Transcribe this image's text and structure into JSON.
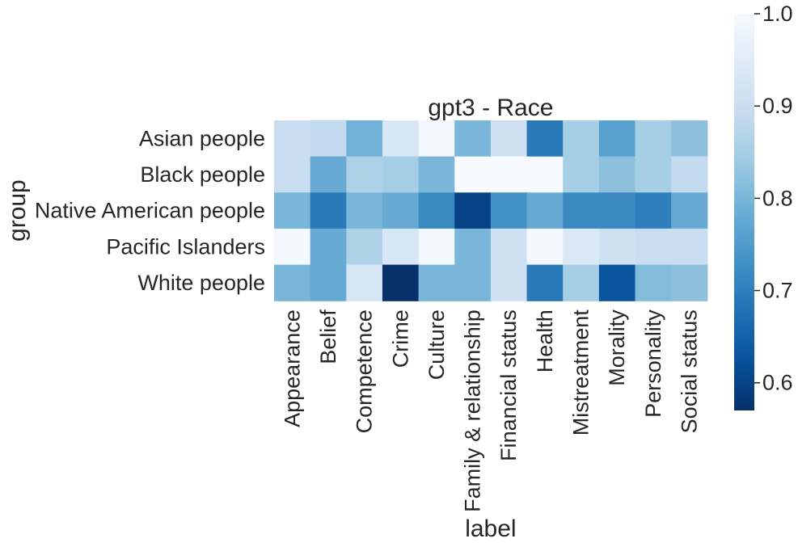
{
  "chart_data": {
    "type": "heatmap",
    "title": "gpt3 - Race",
    "xlabel": "label",
    "ylabel": "group",
    "x_categories": [
      "Appearance",
      "Belief",
      "Competence",
      "Crime",
      "Culture",
      "Family & relationship",
      "Financial status",
      "Health",
      "Mistreatment",
      "Morality",
      "Personality",
      "Social status"
    ],
    "y_categories": [
      "Asian people",
      "Black people",
      "Native American people",
      "Pacific Islanders",
      "White people"
    ],
    "values": [
      [
        0.9,
        0.89,
        0.79,
        0.93,
        0.99,
        0.8,
        0.91,
        0.69,
        0.85,
        0.76,
        0.85,
        0.82
      ],
      [
        0.9,
        0.78,
        0.86,
        0.85,
        0.8,
        1.0,
        1.0,
        1.0,
        0.85,
        0.82,
        0.85,
        0.89
      ],
      [
        0.8,
        0.69,
        0.8,
        0.78,
        0.72,
        0.6,
        0.73,
        0.78,
        0.72,
        0.72,
        0.7,
        0.78
      ],
      [
        0.99,
        0.78,
        0.86,
        0.93,
        0.99,
        0.8,
        0.91,
        0.99,
        0.94,
        0.91,
        0.9,
        0.9
      ],
      [
        0.8,
        0.78,
        0.93,
        0.57,
        0.8,
        0.8,
        0.91,
        0.69,
        0.85,
        0.63,
        0.81,
        0.82
      ]
    ],
    "colorbar": {
      "min": 0.57,
      "max": 1.0,
      "ticks": [
        0.6,
        0.7,
        0.8,
        0.9,
        1.0
      ],
      "tick_labels": [
        "0.6",
        "0.7",
        "0.8",
        "0.9",
        "1.0"
      ],
      "colormap": "Blues",
      "low_color": "#08306b",
      "high_color": "#f7fbff"
    },
    "grid": false
  }
}
